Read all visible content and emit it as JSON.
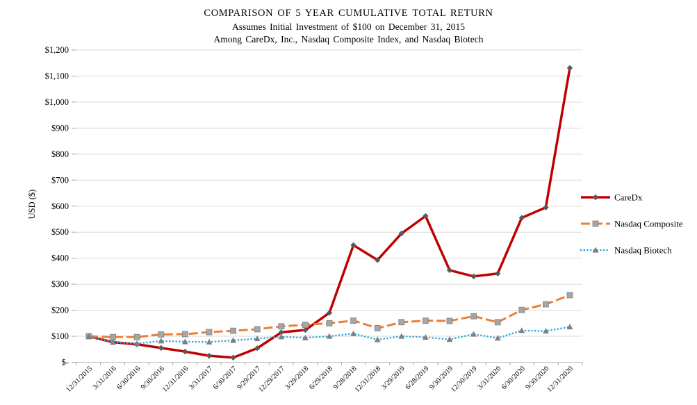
{
  "title": {
    "line1": "COMPARISON OF 5 YEAR CUMULATIVE  TOTAL RETURN",
    "line2": "Assumes  Initial  Investment  of $100 on December  31, 2015",
    "line3": "Among  CareDx,  Inc.,  Nasdaq Composite  Index,  and Nasdaq Biotech"
  },
  "chart_data": {
    "type": "line",
    "title": "COMPARISON OF 5 YEAR CUMULATIVE TOTAL RETURN",
    "subtitle": "Assumes Initial Investment of $100 on December 31, 2015 Among CareDx, Inc., Nasdaq Composite Index, and Nasdaq Biotech",
    "xlabel": "",
    "ylabel": "USD ($)",
    "ylim": [
      0,
      1200
    ],
    "ytick_step": 100,
    "ytick_labels": [
      "$-",
      "$100",
      "$200",
      "$300",
      "$400",
      "$500",
      "$600",
      "$700",
      "$800",
      "$900",
      "$1,000",
      "$1,100",
      "$1,200"
    ],
    "grid": true,
    "legend_position": "right",
    "categories": [
      "12/31/2015",
      "3/31/2016",
      "6/30/2016",
      "9/30/2016",
      "12/31/2016",
      "3/31/2017",
      "6/30/2017",
      "9/29/2017",
      "12/29/2017",
      "3/29/2018",
      "6/29/2018",
      "9/28/2018",
      "12/31/2018",
      "3/29/2019",
      "6/28/2019",
      "9/30/2019",
      "12/30/2019",
      "3/31/2020",
      "6/30/2020",
      "9/30/2020",
      "12/31/2020"
    ],
    "series": [
      {
        "name": "CareDx",
        "color": "#C00000",
        "line_style": "solid",
        "marker": "diamond",
        "marker_color": "#595959",
        "values": [
          100,
          77,
          69,
          55,
          41,
          25,
          18,
          54,
          115,
          124,
          190,
          450,
          393,
          495,
          562,
          354,
          330,
          341,
          555,
          595,
          1131
        ]
      },
      {
        "name": "Nasdaq Composite",
        "color": "#ED7D31",
        "line_style": "dashed",
        "marker": "square",
        "marker_color": "#A6A6A6",
        "values": [
          100,
          97,
          97,
          107,
          108,
          116,
          121,
          127,
          138,
          144,
          150,
          160,
          131,
          154,
          160,
          159,
          177,
          154,
          201,
          223,
          258
        ]
      },
      {
        "name": "Nasdaq Biotech",
        "color": "#2FA9DC",
        "line_style": "dotted",
        "marker": "triangle",
        "marker_color": "#7F7F7F",
        "values": [
          100,
          77,
          72,
          82,
          79,
          78,
          84,
          91,
          98,
          94,
          100,
          110,
          87,
          100,
          96,
          88,
          108,
          93,
          122,
          120,
          136
        ]
      }
    ],
    "colors": {
      "gridline": "#D9D9D9",
      "axis_line": "#BFBFBF",
      "tick": "#A6A6A6",
      "text": "#000000"
    }
  }
}
